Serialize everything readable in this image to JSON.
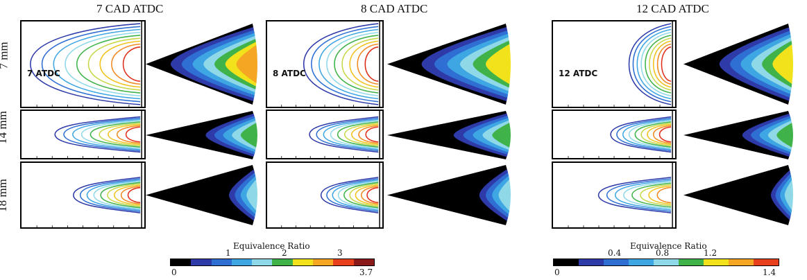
{
  "columns": [
    {
      "title": "7 CAD ATDC",
      "panel_label": "7 ATDC"
    },
    {
      "title": "8 CAD ATDC",
      "panel_label": "8 ATDC"
    },
    {
      "title": "12 CAD ATDC",
      "panel_label": "12 ATDC"
    }
  ],
  "rows": [
    {
      "label": "7 mm"
    },
    {
      "label": "14 mm"
    },
    {
      "label": "18 mm"
    }
  ],
  "colorbars": [
    {
      "title": "Equivalence Ratio",
      "ticks_top": [
        "1",
        "2",
        "3"
      ],
      "min_label": "0",
      "max_label": "3.7"
    },
    {
      "title": "Equivalence Ratio",
      "ticks_top": [
        "0.4",
        "0.8",
        "1.2"
      ],
      "min_label": "0",
      "max_label": "1.4"
    }
  ],
  "colormap": [
    "#000000",
    "#2e3aa8",
    "#2f6fd3",
    "#3ea6e3",
    "#8fd8e8",
    "#3fb34a",
    "#f2e21b",
    "#f5a623",
    "#e8401c",
    "#8b1a1a"
  ],
  "contour_colors": [
    "#2e3aa8",
    "#2f6fd3",
    "#3ea6e3",
    "#8fd8e8",
    "#3fb34a",
    "#c8d84a",
    "#f2c21b",
    "#f08a23",
    "#e0301c",
    "#8b1a1a"
  ]
}
